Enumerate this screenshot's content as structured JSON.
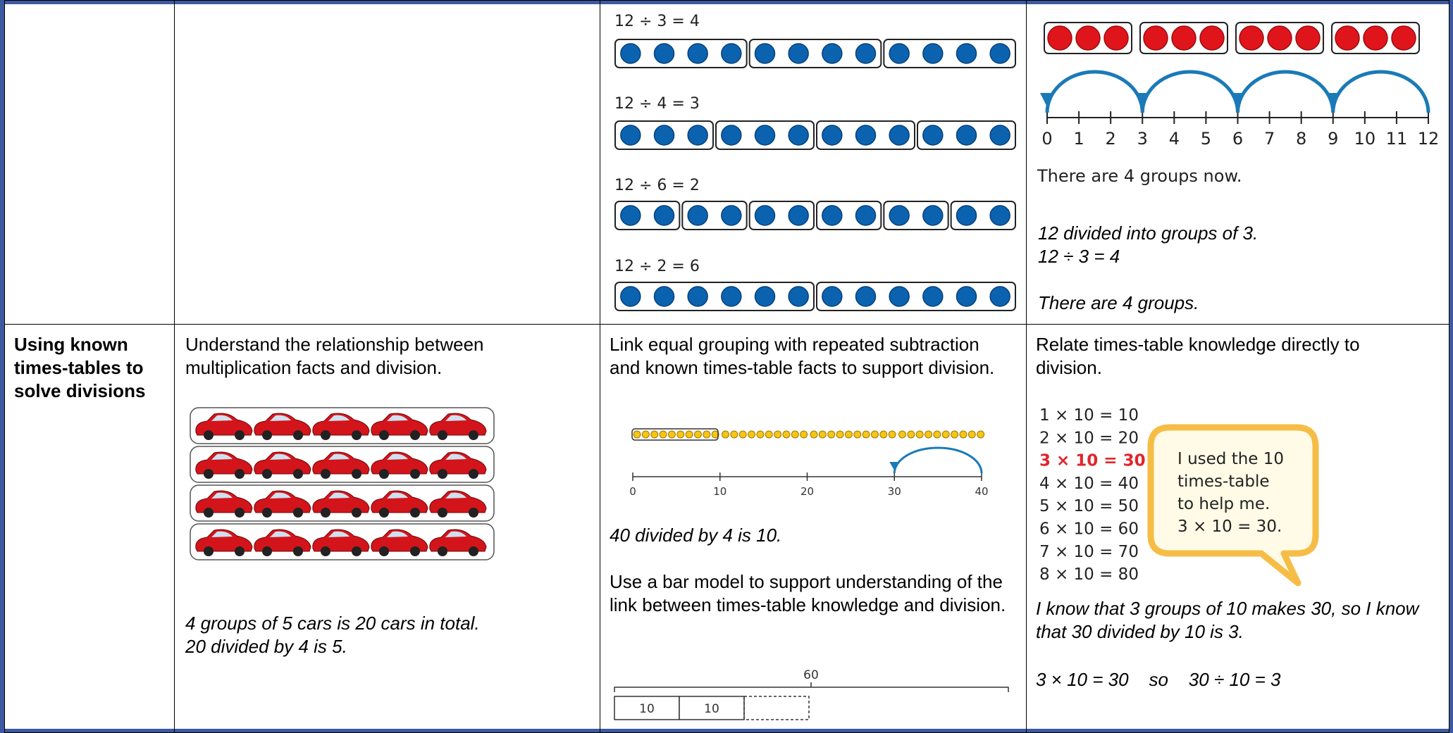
{
  "row1": {
    "equal_groups": {
      "equations": [
        "12 ÷ 3 = 4",
        "12 ÷ 4 = 3",
        "12 ÷ 6 = 2",
        "12 ÷ 2 = 6"
      ]
    },
    "grouping_model": {
      "number_line_labels": [
        "0",
        "1",
        "2",
        "3",
        "4",
        "5",
        "6",
        "7",
        "8",
        "9",
        "10",
        "11",
        "12"
      ],
      "caption": "There are 4 groups now.",
      "notes": [
        "12 divided into groups of 3.",
        "12 ÷ 3 = 4"
      ],
      "conclusion": "There are 4 groups."
    }
  },
  "row2": {
    "heading": "Using known times-tables to solve divisions",
    "multiplication": {
      "text": "Understand the relationship between multiplication facts and division.",
      "notes": [
        "4 groups of 5 cars is 20 cars in total.",
        "20 divided by 4 is 5."
      ]
    },
    "grouping": {
      "text": "Link equal grouping with repeated subtraction and known times-table facts to support division.",
      "number_line_labels": [
        "0",
        "10",
        "20",
        "30",
        "40"
      ],
      "result": "40 divided by 4 is 10.",
      "bar_text": "Use a bar model to support understanding of the link between times-table knowledge and division.",
      "bar_total": "60",
      "bar_parts": [
        "10",
        "10"
      ]
    },
    "times_tables": {
      "text": "Relate times-table knowledge directly to division.",
      "facts": [
        "1 × 10 = 10",
        "2 × 10 = 20",
        "3 × 10 = 30",
        "4 × 10 = 40",
        "5 × 10 = 50",
        "6 × 10 = 60",
        "7 × 10 = 70",
        "8 × 10 = 80"
      ],
      "bubble": [
        "I used the 10",
        "times-table",
        "to help me.",
        "3 × 10 = 30."
      ],
      "notes": [
        "I know that 3 groups of 10 makes 30, so I know that 30 divided by 10 is 3."
      ],
      "summary": "3 × 10 = 30    so    30 ÷ 10 = 3"
    }
  }
}
